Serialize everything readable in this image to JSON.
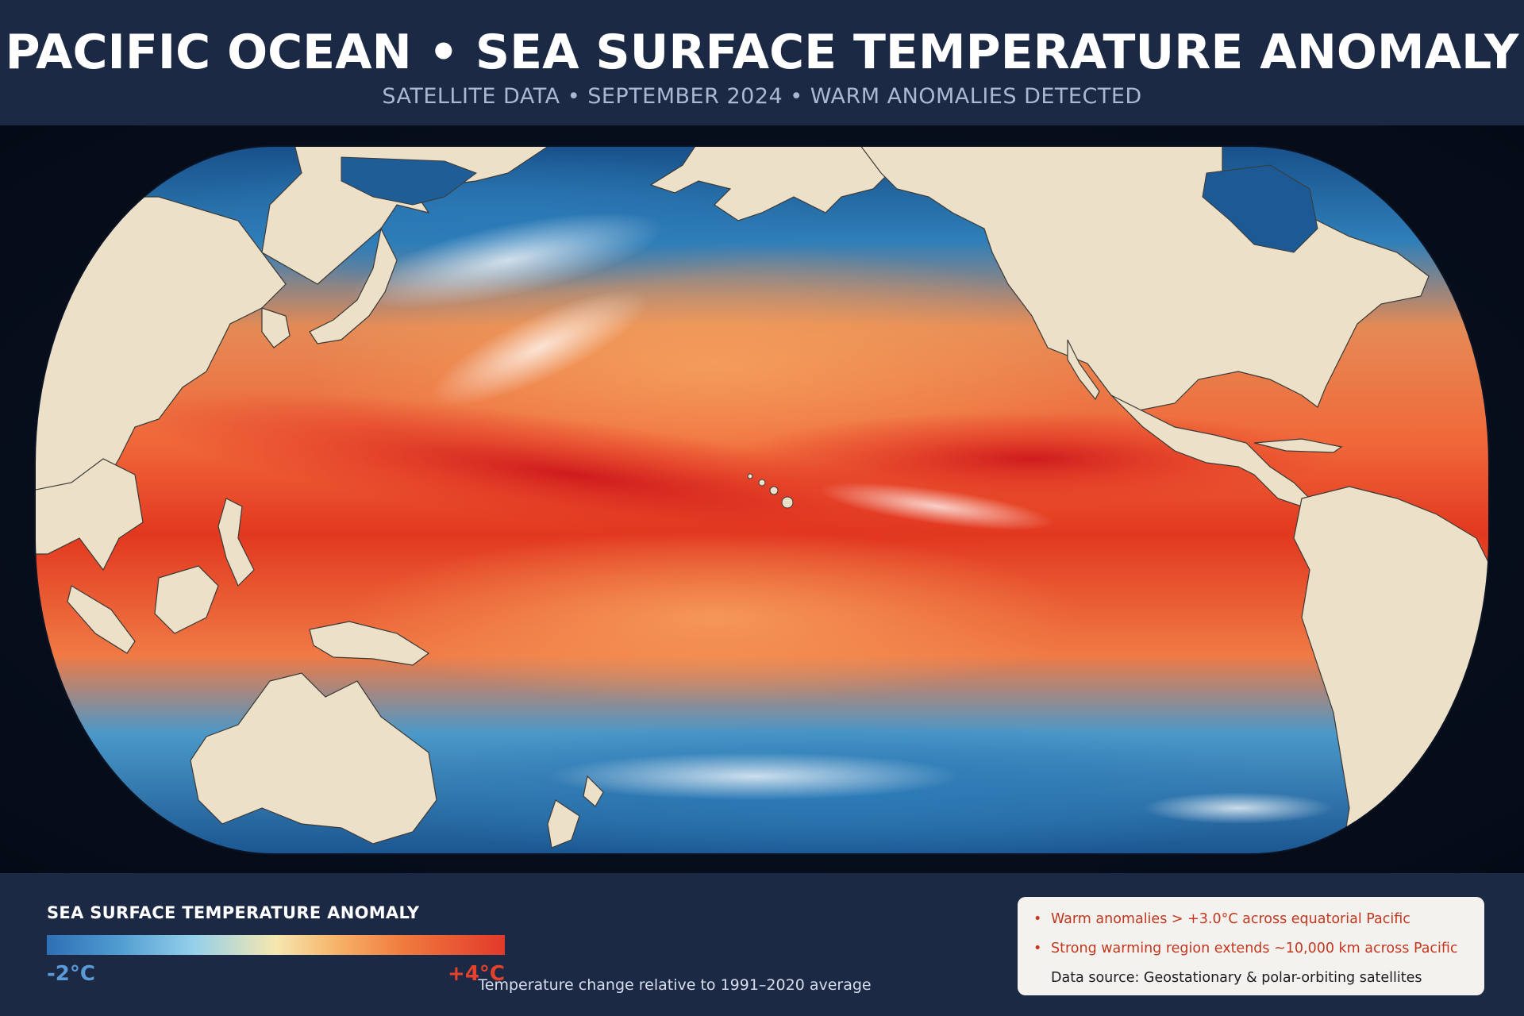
{
  "header": {
    "title": "PACIFIC OCEAN • SEA SURFACE TEMPERATURE ANOMALY",
    "subtitle": "SATELLITE DATA • SEPTEMBER 2024 • WARM ANOMALIES DETECTED"
  },
  "legend": {
    "title": "SEA SURFACE TEMPERATURE ANOMALY",
    "min_label": "-2°C",
    "max_label": "+4°C",
    "baseline_note": "Temperature change relative to 1991–2020 average",
    "colors": [
      "#2f6fb5",
      "#4d9ad0",
      "#94d0ea",
      "#f6e7b0",
      "#f7b46a",
      "#f07a3e",
      "#e2392a"
    ]
  },
  "info": {
    "bullets": [
      "Warm anomalies > +3.0°C across equatorial Pacific",
      "Strong warming region extends ~10,000 km across Pacific"
    ],
    "source": "Data source: Geostationary & polar-orbiting satellites"
  },
  "colors": {
    "header_bg": "#1c2944",
    "land": "#ede0c8",
    "ocean_cold": "#1f5d96",
    "ocean_warm": "#e33a22"
  }
}
